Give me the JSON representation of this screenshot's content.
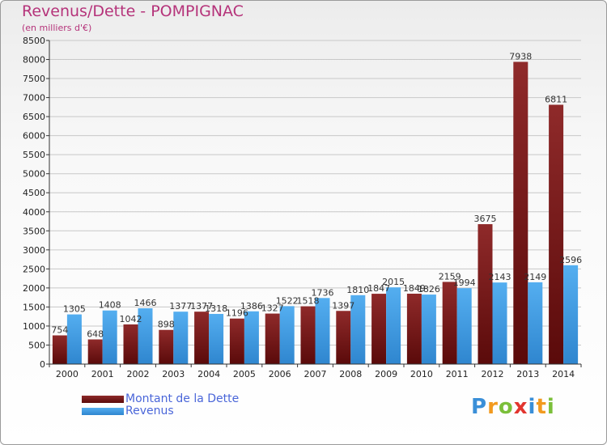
{
  "title": "Revenus/Dette - POMPIGNAC",
  "subtitle": "(en milliers d'€)",
  "brand": {
    "letters": [
      {
        "ch": "P",
        "color": "#3a8fd8"
      },
      {
        "ch": "r",
        "color": "#f29a1f"
      },
      {
        "ch": "o",
        "color": "#7bbf3a"
      },
      {
        "ch": "x",
        "color": "#e2352f"
      },
      {
        "ch": "i",
        "color": "#3a8fd8"
      },
      {
        "ch": "t",
        "color": "#f29a1f"
      },
      {
        "ch": "i",
        "color": "#7bbf3a"
      }
    ]
  },
  "colors": {
    "debt": "#7a1a1a",
    "revenue": "#3d97df",
    "axis": "#333333",
    "grid": "#c8c8c8",
    "title": "#b5337a",
    "legend_text": "#4a66d9"
  },
  "chart_data": {
    "type": "bar",
    "title": "Revenus/Dette - POMPIGNAC",
    "ylabel": "(en milliers d'€)",
    "xlabel": "",
    "ylim": [
      0,
      8500
    ],
    "yticks": [
      0,
      500,
      1000,
      1500,
      2000,
      2500,
      3000,
      3500,
      4000,
      4500,
      5000,
      5500,
      6000,
      6500,
      7000,
      7500,
      8000,
      8500
    ],
    "grid": true,
    "legend_position": "bottom-left",
    "categories": [
      "2000",
      "2001",
      "2002",
      "2003",
      "2004",
      "2005",
      "2006",
      "2007",
      "2008",
      "2009",
      "2010",
      "2011",
      "2012",
      "2013",
      "2014"
    ],
    "series": [
      {
        "name": "Montant de la Dette",
        "values": [
          754,
          648,
          1042,
          898,
          1377,
          1196,
          1327,
          1518,
          1397,
          1847,
          1849,
          2159,
          3675,
          7938,
          6811
        ]
      },
      {
        "name": "Revenus",
        "values": [
          1305,
          1408,
          1466,
          1377,
          1318,
          1386,
          1522,
          1736,
          1810,
          2015,
          1826,
          1994,
          2143,
          2149,
          2596
        ]
      }
    ]
  }
}
